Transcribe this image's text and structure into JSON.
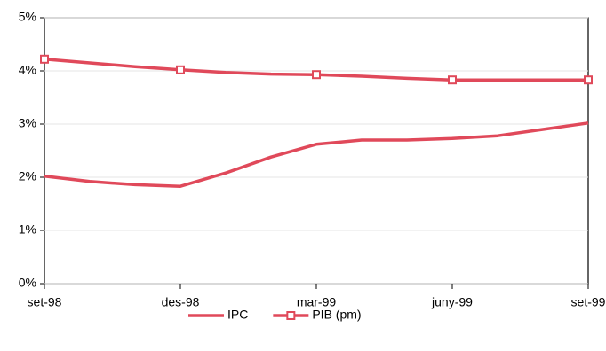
{
  "chart_data": {
    "type": "line",
    "categories": [
      "set-98",
      null,
      null,
      "des-98",
      null,
      null,
      "mar-99",
      null,
      null,
      "juny-99",
      null,
      null,
      "set-99"
    ],
    "series": [
      {
        "name": "IPC",
        "color": "#e0495a",
        "marker": false,
        "values": [
          2.02,
          1.92,
          1.86,
          1.83,
          2.08,
          2.38,
          2.62,
          2.7,
          2.7,
          2.73,
          2.78,
          2.9,
          3.02
        ]
      },
      {
        "name": "PIB (pm)",
        "color": "#e0495a",
        "marker": true,
        "values": [
          4.22,
          4.15,
          4.08,
          4.02,
          3.97,
          3.94,
          3.93,
          3.9,
          3.86,
          3.83,
          3.83,
          3.83,
          3.83
        ]
      }
    ],
    "ylim": [
      0,
      5
    ],
    "yticks": [
      {
        "value": 0,
        "label": "0%"
      },
      {
        "value": 1,
        "label": "1%"
      },
      {
        "value": 2,
        "label": "2%"
      },
      {
        "value": 3,
        "label": "3%"
      },
      {
        "value": 4,
        "label": "4%"
      },
      {
        "value": 5,
        "label": "5%"
      }
    ],
    "grid": true,
    "legend": "bottom"
  }
}
